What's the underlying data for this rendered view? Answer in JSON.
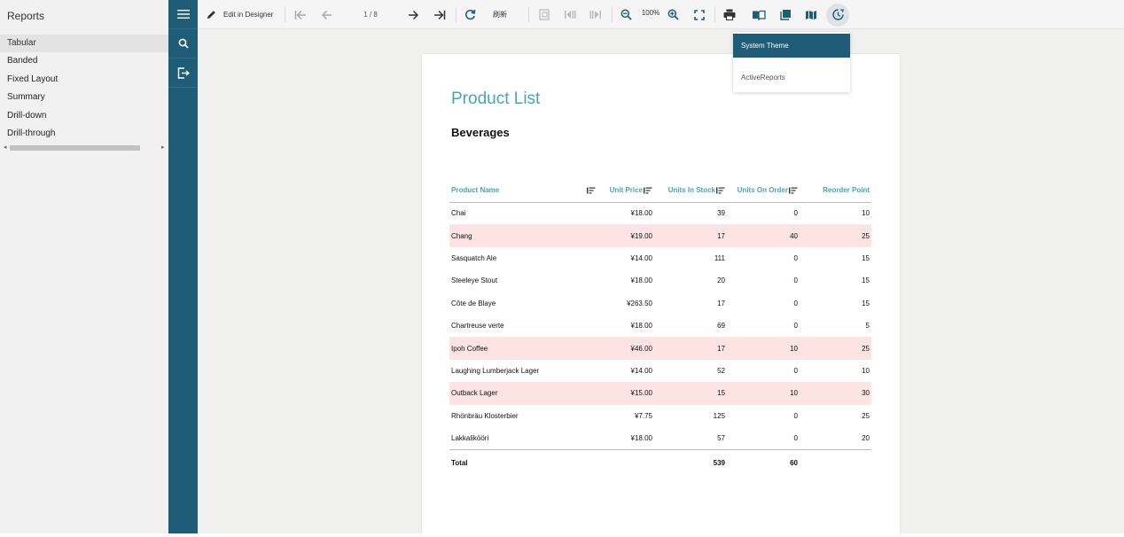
{
  "reports_panel": {
    "title": "Reports",
    "items": [
      {
        "label": "Tabular",
        "active": true
      },
      {
        "label": "Banded"
      },
      {
        "label": "Fixed Layout"
      },
      {
        "label": "Summary"
      },
      {
        "label": "Drill-down"
      },
      {
        "label": "Drill-through"
      }
    ]
  },
  "toolbar": {
    "edit_label": "Edit in Designer",
    "page_indicator": "1 / 8",
    "refresh_label": "刷新",
    "zoom_level": "100%"
  },
  "theme_menu": {
    "options": [
      "System Theme",
      "ActiveReports"
    ],
    "selected": "System Theme"
  },
  "report": {
    "title": "Product List",
    "group": "Beverages",
    "columns": [
      "Product Name",
      "Unit Price",
      "Units In Stock",
      "Units On Order",
      "Reorder Point"
    ],
    "rows": [
      [
        "Chai",
        "¥18.00",
        "39",
        "0",
        "10"
      ],
      [
        "Chang",
        "¥19.00",
        "17",
        "40",
        "25"
      ],
      [
        "Sasquatch Ale",
        "¥14.00",
        "111",
        "0",
        "15"
      ],
      [
        "Steeleye Stout",
        "¥18.00",
        "20",
        "0",
        "15"
      ],
      [
        "Côte de Blaye",
        "¥263.50",
        "17",
        "0",
        "15"
      ],
      [
        "Chartreuse verte",
        "¥18.00",
        "69",
        "0",
        "5"
      ],
      [
        "Ipoh Coffee",
        "¥46.00",
        "17",
        "10",
        "25"
      ],
      [
        "Laughing Lumberjack Lager",
        "¥14.00",
        "52",
        "0",
        "10"
      ],
      [
        "Outback Lager",
        "¥15.00",
        "15",
        "10",
        "30"
      ],
      [
        "Rhönbräu Klosterbier",
        "¥7.75",
        "125",
        "0",
        "25"
      ],
      [
        "Lakkalikööri",
        "¥18.00",
        "57",
        "0",
        "20"
      ]
    ],
    "highlighted_rows": [
      1,
      6,
      8
    ],
    "total": {
      "label": "Total",
      "units_in_stock": "539",
      "units_on_order": "60"
    }
  },
  "colors": {
    "sidebar": "#1e5c77",
    "accent": "#49a3b1",
    "highlight_row": "#fde4e2"
  }
}
